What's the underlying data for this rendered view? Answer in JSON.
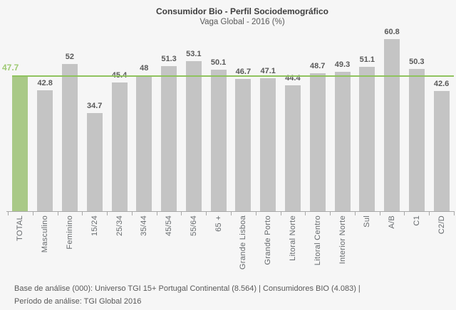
{
  "title": "Consumidor Bio - Perfil Sociodemográfico",
  "subtitle": "Vaga Global - 2016 (%)",
  "chart_data": {
    "type": "bar",
    "categories": [
      "TOTAL",
      "Masculino",
      "Feminino",
      "15/24",
      "25/34",
      "35/44",
      "45/54",
      "55/64",
      "65 +",
      "Grande Lisboa",
      "Grande Porto",
      "Litoral Norte",
      "Litoral Centro",
      "Interior Norte",
      "Sul",
      "A/B",
      "C1",
      "C2/D"
    ],
    "values": [
      47.7,
      42.8,
      52,
      34.7,
      45.4,
      48,
      51.3,
      53.1,
      50.1,
      46.7,
      47.1,
      44.4,
      48.7,
      49.3,
      51.1,
      60.8,
      50.3,
      42.6
    ],
    "value_labels": [
      "47.7",
      "42.8",
      "52",
      "34.7",
      "45.4",
      "48",
      "51.3",
      "53.1",
      "50.1",
      "46.7",
      "47.1",
      "44.4",
      "48.7",
      "49.3",
      "51.1",
      "60.8",
      "50.3",
      "42.6"
    ],
    "highlight_category": "TOTAL",
    "reference_line": {
      "value": 47.7,
      "label": "47.7"
    },
    "colors": {
      "bar": "#c4c4c4",
      "highlight_bar": "#a9c987",
      "reference_line": "#8fc35f",
      "reference_label": "#9ec973",
      "value_label": "#595959",
      "axis": "#a8a8a8"
    },
    "ylim": [
      0,
      75
    ],
    "grid": false,
    "legend": false,
    "xlabel": "",
    "ylabel": ""
  },
  "footer": {
    "line1": "Base de análise (000): Universo TGI 15+ Portugal Continental (8.564) | Consumidores BIO (4.083) |",
    "line2": "Período de análise: TGI Global 2016"
  }
}
